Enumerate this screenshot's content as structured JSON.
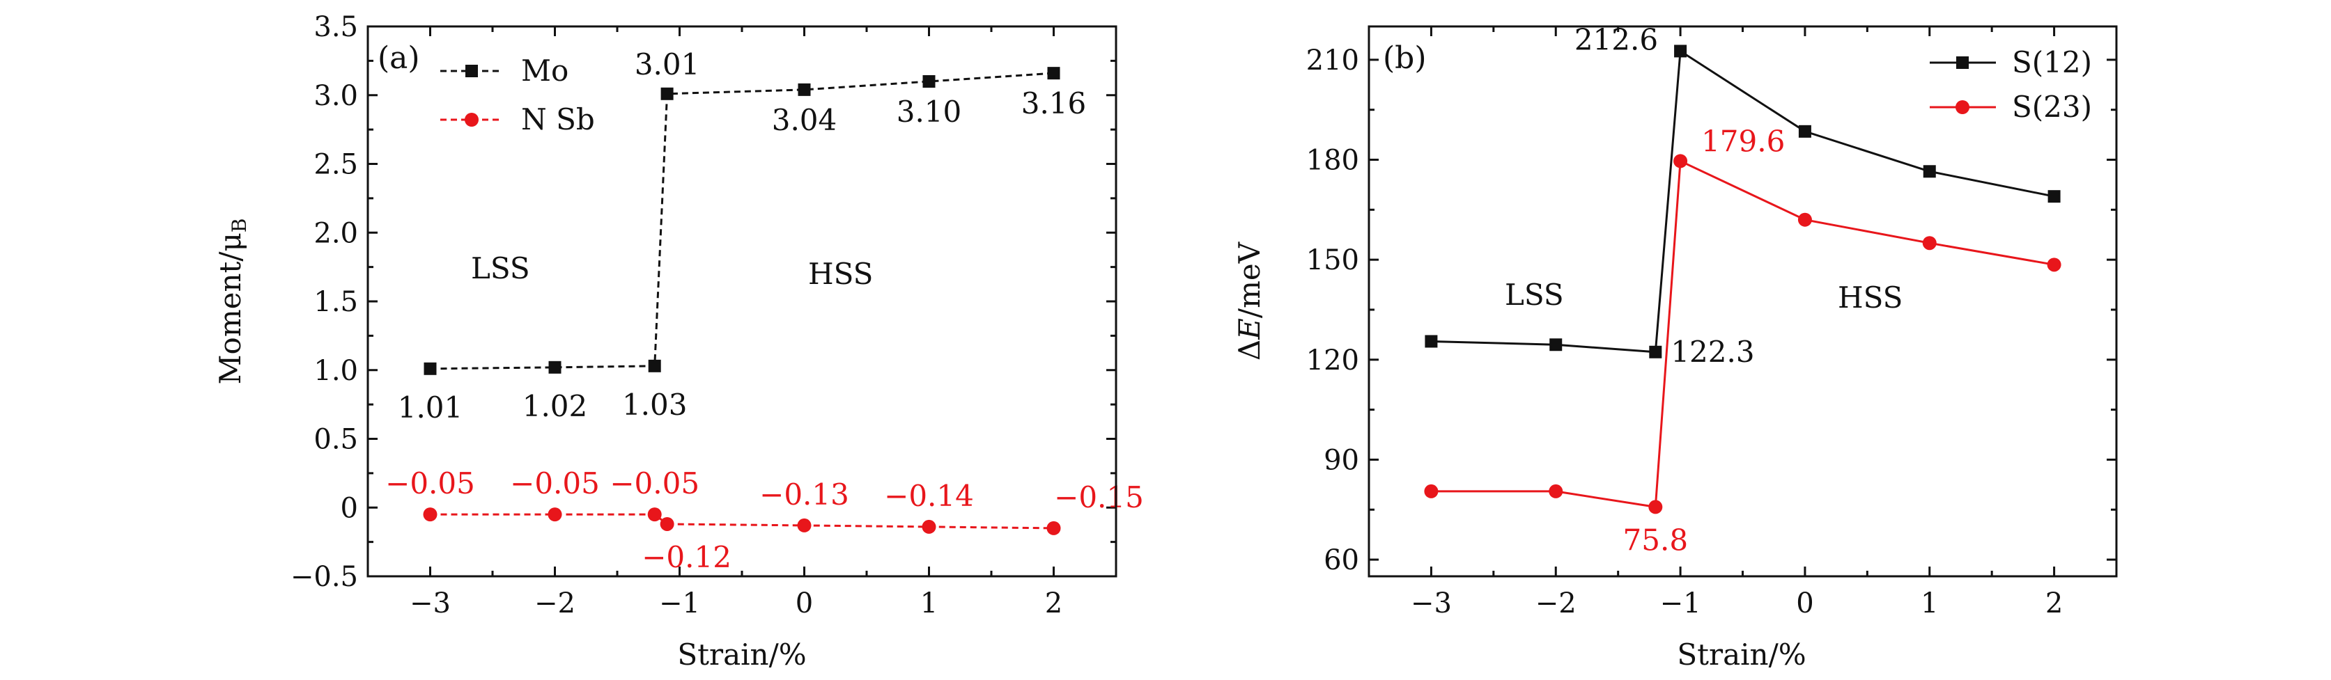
{
  "chart_data": [
    {
      "type": "line",
      "panel_label": "(a)",
      "xlabel": "Strain/%",
      "ylabel": "Moment/μ",
      "ylabel_subscript": "B",
      "xlim": [
        -3.5,
        2.5
      ],
      "ylim": [
        -0.5,
        3.5
      ],
      "xticks": [
        -3,
        -2,
        -1,
        0,
        1,
        2
      ],
      "xtick_labels": [
        "−3",
        "−2",
        "−1",
        "0",
        "1",
        "2"
      ],
      "yticks": [
        -0.5,
        0.0,
        0.5,
        1.0,
        1.5,
        2.0,
        2.5,
        3.0,
        3.5
      ],
      "ytick_labels": [
        "−0.5",
        "0",
        "0.5",
        "1.0",
        "1.5",
        "2.0",
        "2.5",
        "3.0",
        "3.5"
      ],
      "series": [
        {
          "name": "Mo",
          "color": "#111111",
          "line": "dashed",
          "marker": "square",
          "x": [
            -3,
            -2,
            -1.2,
            -1.1,
            0,
            1,
            2
          ],
          "y": [
            1.01,
            1.02,
            1.03,
            3.01,
            3.04,
            3.1,
            3.16
          ],
          "labels": [
            "1.01",
            "1.02",
            "1.03",
            "3.01",
            "3.04",
            "3.10",
            "3.16"
          ]
        },
        {
          "name": "N Sb",
          "color": "#e8161b",
          "line": "dashed",
          "marker": "circle",
          "x": [
            -3,
            -2,
            -1.2,
            -1.1,
            0,
            1,
            2
          ],
          "y": [
            -0.05,
            -0.05,
            -0.05,
            -0.12,
            -0.13,
            -0.14,
            -0.15
          ],
          "labels": [
            "−0.05",
            "−0.05",
            "−0.05",
            "−0.12",
            "−0.13",
            "−0.14",
            "−0.15"
          ]
        }
      ],
      "annotations": [
        "LSS",
        "HSS"
      ],
      "legend": "top-left"
    },
    {
      "type": "line",
      "panel_label": "(b)",
      "xlabel": "Strain/%",
      "ylabel": "ΔE/meV",
      "xlim": [
        -3.5,
        2.5
      ],
      "ylim": [
        55,
        220
      ],
      "xticks": [
        -3,
        -2,
        -1,
        0,
        1,
        2
      ],
      "xtick_labels": [
        "−3",
        "−2",
        "−1",
        "0",
        "1",
        "2"
      ],
      "yticks": [
        60,
        90,
        120,
        150,
        180,
        210
      ],
      "ytick_labels": [
        "60",
        "90",
        "120",
        "150",
        "180",
        "210"
      ],
      "series": [
        {
          "name": "S(12)",
          "color": "#111111",
          "line": "solid",
          "marker": "square",
          "x": [
            -3,
            -2,
            -1.2,
            -1.0,
            0,
            1,
            2
          ],
          "y": [
            125.5,
            124.5,
            122.3,
            212.6,
            188.5,
            176.5,
            169.0
          ],
          "labels": [
            "",
            "",
            "122.3",
            "212.6",
            "",
            "",
            ""
          ]
        },
        {
          "name": "S(23)",
          "color": "#e8161b",
          "line": "solid",
          "marker": "circle",
          "x": [
            -3,
            -2,
            -1.2,
            -1.0,
            0,
            1,
            2
          ],
          "y": [
            80.5,
            80.5,
            75.8,
            179.6,
            162.0,
            155.0,
            148.5
          ],
          "labels": [
            "",
            "",
            "75.8",
            "179.6",
            "",
            "",
            ""
          ]
        }
      ],
      "annotations": [
        "LSS",
        "HSS"
      ],
      "legend": "top-right"
    }
  ]
}
